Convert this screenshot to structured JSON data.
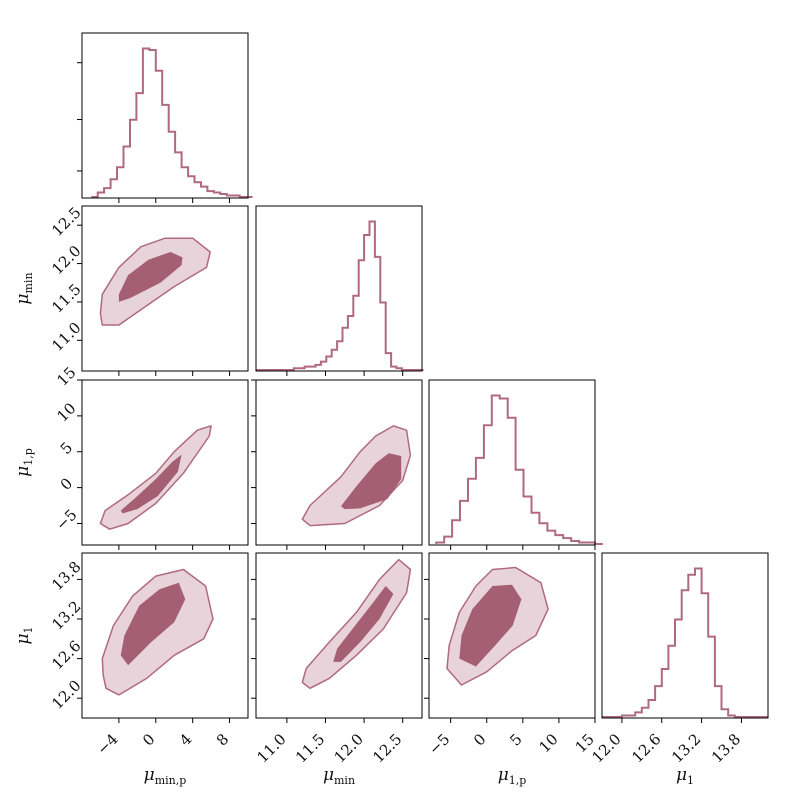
{
  "chart_data": {
    "type": "corner",
    "colors": {
      "line": "#b06a80",
      "inner_fill": "#a45f74",
      "outer_fill": "#e8d3da"
    },
    "params": [
      {
        "key": "mu_min_p",
        "label": "μ_min,p",
        "range": [
          -8,
          10
        ],
        "ticks": [
          -4,
          0,
          4,
          8
        ],
        "tick_labels": [
          "−4",
          "0",
          "4",
          "8"
        ]
      },
      {
        "key": "mu_min",
        "label": "μ_min",
        "range": [
          10.6,
          12.75
        ],
        "ticks": [
          11.0,
          11.5,
          12.0,
          12.5
        ],
        "tick_labels": [
          "11.0",
          "11.5",
          "12.0",
          "12.5"
        ]
      },
      {
        "key": "mu_1_p",
        "label": "μ_1,p",
        "range": [
          -8,
          15
        ],
        "ticks": [
          -5,
          0,
          5,
          10,
          15
        ],
        "tick_labels": [
          "−5",
          "0",
          "5",
          "10",
          "15"
        ]
      },
      {
        "key": "mu_1",
        "label": "μ_1",
        "range": [
          11.7,
          14.2
        ],
        "ticks": [
          12.0,
          12.6,
          13.2,
          13.8
        ],
        "tick_labels": [
          "12.0",
          "12.6",
          "13.2",
          "13.8"
        ]
      }
    ],
    "histograms": [
      {
        "param": "mu_min_p",
        "bin_width": 0.7,
        "start": -7,
        "counts": [
          0,
          3,
          6,
          12,
          20,
          34,
          52,
          70,
          100,
          99,
          85,
          62,
          44,
          30,
          20,
          14,
          10,
          7,
          4,
          3,
          2,
          1,
          1,
          0,
          0
        ]
      },
      {
        "param": "mu_min",
        "bin_width": 0.07,
        "start": 10.6,
        "counts": [
          0,
          0,
          0,
          0,
          0,
          0,
          0,
          1,
          1,
          2,
          2,
          3,
          5,
          8,
          12,
          17,
          25,
          32,
          44,
          65,
          80,
          88,
          67,
          40,
          10,
          2,
          1,
          0,
          0,
          0,
          0
        ]
      },
      {
        "param": "mu_1_p",
        "bin_width": 1.1,
        "start": -7,
        "counts": [
          1,
          5,
          16,
          29,
          44,
          58,
          80,
          100,
          98,
          85,
          50,
          32,
          21,
          14,
          9,
          6,
          4,
          2,
          1,
          1,
          0
        ]
      },
      {
        "param": "mu_1",
        "bin_width": 0.1,
        "start": 11.7,
        "counts": [
          0,
          0,
          0,
          1,
          1,
          3,
          6,
          11,
          20,
          31,
          46,
          63,
          82,
          92,
          96,
          80,
          52,
          20,
          5,
          1,
          0,
          0,
          0,
          0,
          0
        ]
      }
    ],
    "pairs": [
      {
        "x": "mu_min_p",
        "y": "mu_min",
        "outer": [
          [
            -6.0,
            11.35
          ],
          [
            -5.8,
            11.6
          ],
          [
            -4,
            11.95
          ],
          [
            -1.6,
            12.22
          ],
          [
            1,
            12.33
          ],
          [
            4,
            12.33
          ],
          [
            5.9,
            12.15
          ],
          [
            5.5,
            11.95
          ],
          [
            2,
            11.7
          ],
          [
            -1,
            11.45
          ],
          [
            -4,
            11.2
          ],
          [
            -5.8,
            11.2
          ]
        ],
        "inner": [
          [
            -4.0,
            11.6
          ],
          [
            -3.0,
            11.85
          ],
          [
            -0.8,
            12.05
          ],
          [
            1.6,
            12.15
          ],
          [
            2.9,
            12.08
          ],
          [
            2.8,
            11.98
          ],
          [
            0.5,
            11.75
          ],
          [
            -2.8,
            11.55
          ],
          [
            -4,
            11.5
          ]
        ]
      },
      {
        "x": "mu_min_p",
        "y": "mu_1_p",
        "outer": [
          [
            -6,
            -5
          ],
          [
            -5.5,
            -3.2
          ],
          [
            -3,
            -1
          ],
          [
            0,
            2
          ],
          [
            2,
            5
          ],
          [
            4.5,
            8
          ],
          [
            6,
            8.6
          ],
          [
            5.8,
            7.2
          ],
          [
            3,
            2
          ],
          [
            0,
            -2.2
          ],
          [
            -3,
            -5
          ],
          [
            -5,
            -5.8
          ]
        ],
        "inner": [
          [
            -3.8,
            -3.2
          ],
          [
            -2.2,
            -1.4
          ],
          [
            0,
            1.2
          ],
          [
            1.8,
            3.6
          ],
          [
            2.8,
            4.6
          ],
          [
            2.4,
            2.2
          ],
          [
            0.2,
            -1.2
          ],
          [
            -2,
            -3.0
          ],
          [
            -3.6,
            -3.6
          ]
        ]
      },
      {
        "x": "mu_min",
        "y": "mu_1_p",
        "outer": [
          [
            11.2,
            -4.4
          ],
          [
            11.3,
            -2.5
          ],
          [
            11.7,
            1.5
          ],
          [
            11.95,
            5.0
          ],
          [
            12.15,
            7.2
          ],
          [
            12.38,
            8.6
          ],
          [
            12.55,
            8.0
          ],
          [
            12.6,
            4.5
          ],
          [
            12.5,
            1.0
          ],
          [
            12.2,
            -2.5
          ],
          [
            11.75,
            -5
          ],
          [
            11.3,
            -5.3
          ]
        ],
        "inner": [
          [
            11.7,
            -2.6
          ],
          [
            11.9,
            0.2
          ],
          [
            12.15,
            3.4
          ],
          [
            12.32,
            4.8
          ],
          [
            12.48,
            4.4
          ],
          [
            12.48,
            1.2
          ],
          [
            12.3,
            -1.6
          ],
          [
            11.95,
            -2.9
          ],
          [
            11.75,
            -3.0
          ]
        ]
      },
      {
        "x": "mu_min_p",
        "y": "mu_1",
        "outer": [
          [
            -5.7,
            12.35
          ],
          [
            -5.8,
            12.6
          ],
          [
            -4.6,
            13.1
          ],
          [
            -2.5,
            13.55
          ],
          [
            0,
            13.85
          ],
          [
            3,
            13.95
          ],
          [
            5.4,
            13.7
          ],
          [
            6.2,
            13.2
          ],
          [
            5.2,
            12.9
          ],
          [
            2,
            12.65
          ],
          [
            -1,
            12.3
          ],
          [
            -4,
            12.05
          ],
          [
            -5.4,
            12.15
          ]
        ],
        "inner": [
          [
            -3.8,
            12.65
          ],
          [
            -3.4,
            12.95
          ],
          [
            -1.8,
            13.4
          ],
          [
            0.4,
            13.65
          ],
          [
            2.5,
            13.75
          ],
          [
            3.2,
            13.5
          ],
          [
            2.0,
            13.15
          ],
          [
            -0.5,
            12.85
          ],
          [
            -3.0,
            12.5
          ]
        ]
      },
      {
        "x": "mu_min",
        "y": "mu_1",
        "outer": [
          [
            11.2,
            12.24
          ],
          [
            11.25,
            12.45
          ],
          [
            11.55,
            12.85
          ],
          [
            11.9,
            13.3
          ],
          [
            12.2,
            13.8
          ],
          [
            12.45,
            14.1
          ],
          [
            12.6,
            13.95
          ],
          [
            12.55,
            13.6
          ],
          [
            12.25,
            13.05
          ],
          [
            11.9,
            12.65
          ],
          [
            11.55,
            12.3
          ],
          [
            11.3,
            12.15
          ]
        ],
        "inner": [
          [
            11.6,
            12.55
          ],
          [
            11.65,
            12.75
          ],
          [
            11.85,
            13.05
          ],
          [
            12.05,
            13.35
          ],
          [
            12.28,
            13.7
          ],
          [
            12.38,
            13.58
          ],
          [
            12.2,
            13.2
          ],
          [
            11.95,
            12.85
          ],
          [
            11.7,
            12.55
          ]
        ]
      },
      {
        "x": "mu_1_p",
        "y": "mu_1",
        "outer": [
          [
            -5.5,
            12.45
          ],
          [
            -5.2,
            12.8
          ],
          [
            -3.8,
            13.3
          ],
          [
            -1.5,
            13.7
          ],
          [
            0.8,
            13.95
          ],
          [
            4,
            13.98
          ],
          [
            7.5,
            13.75
          ],
          [
            8.5,
            13.35
          ],
          [
            6.8,
            12.95
          ],
          [
            3.5,
            12.72
          ],
          [
            0,
            12.4
          ],
          [
            -3.5,
            12.2
          ]
        ],
        "inner": [
          [
            -3.8,
            12.6
          ],
          [
            -3.5,
            12.95
          ],
          [
            -2.0,
            13.35
          ],
          [
            0.8,
            13.7
          ],
          [
            3.5,
            13.72
          ],
          [
            4.8,
            13.5
          ],
          [
            3.6,
            13.1
          ],
          [
            1.0,
            12.78
          ],
          [
            -1.5,
            12.48
          ]
        ]
      }
    ]
  }
}
